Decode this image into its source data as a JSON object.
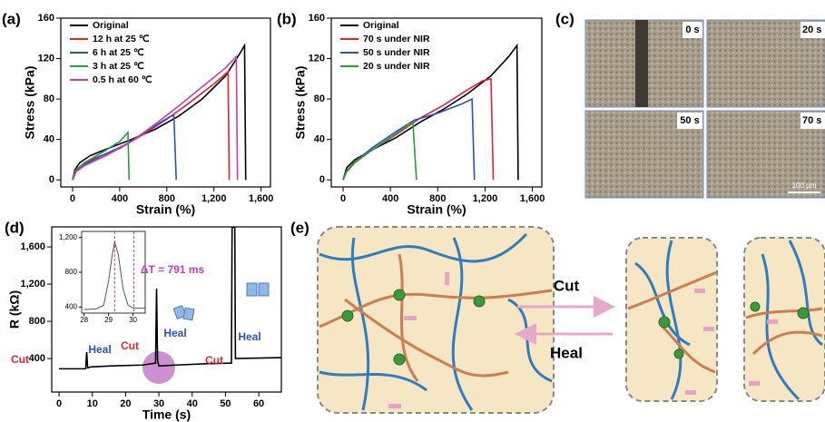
{
  "chart_data": [
    {
      "type": "line",
      "label": "(a)",
      "xlabel": "Strain (%)",
      "ylabel": "Stress (kPa)",
      "xlim": [
        -100,
        1680
      ],
      "ylim": [
        -7,
        160
      ],
      "xticks": [
        0,
        400,
        800,
        {
          "value": 1200,
          "label": "1,200"
        },
        {
          "value": 1600,
          "label": "1,600"
        }
      ],
      "yticks": [
        0,
        40,
        80,
        120,
        160
      ],
      "legend": "upper left",
      "series": [
        {
          "name": "Original",
          "color": "#000000",
          "x": [
            0,
            20,
            60,
            150,
            300,
            500,
            700,
            900,
            1100,
            1300,
            1420,
            1460,
            1470
          ],
          "values": [
            0,
            10,
            17,
            24,
            31,
            40,
            50,
            63,
            80,
            103,
            125,
            133,
            0
          ]
        },
        {
          "name": "12 h at 25 ℃",
          "color": "#e8202a",
          "x": [
            0,
            20,
            80,
            200,
            400,
            600,
            800,
            1000,
            1200,
            1290,
            1320,
            1330
          ],
          "values": [
            0,
            8,
            15,
            22,
            31,
            45,
            60,
            77,
            95,
            104,
            107,
            0
          ]
        },
        {
          "name": "6 h at 25 ℃",
          "color": "#2a4fc8",
          "x": [
            0,
            30,
            100,
            250,
            450,
            650,
            820,
            860,
            880
          ],
          "values": [
            0,
            8,
            15,
            24,
            35,
            50,
            62,
            64,
            0
          ]
        },
        {
          "name": "3 h at 25 ℃",
          "color": "#1fa23a",
          "x": [
            0,
            30,
            100,
            250,
            400,
            470,
            480
          ],
          "values": [
            0,
            10,
            17,
            27,
            38,
            47,
            0
          ]
        },
        {
          "name": "0.5 h at 60 ℃",
          "color": "#c43cc4",
          "x": [
            0,
            30,
            100,
            300,
            500,
            700,
            900,
            1100,
            1300,
            1390,
            1400
          ],
          "values": [
            0,
            8,
            14,
            25,
            38,
            55,
            73,
            92,
            111,
            122,
            0
          ]
        }
      ]
    },
    {
      "type": "line",
      "label": "(b)",
      "xlabel": "Strain (%)",
      "ylabel": "Stress (kPa)",
      "xlim": [
        -100,
        1680
      ],
      "ylim": [
        -7,
        160
      ],
      "xticks": [
        0,
        400,
        800,
        {
          "value": 1200,
          "label": "1,200"
        },
        {
          "value": 1600,
          "label": "1,600"
        }
      ],
      "yticks": [
        0,
        40,
        80,
        120,
        160
      ],
      "legend": "upper left",
      "series": [
        {
          "name": "Original",
          "color": "#000000",
          "x": [
            0,
            30,
            100,
            250,
            450,
            650,
            850,
            1050,
            1250,
            1400,
            1470,
            1480
          ],
          "values": [
            0,
            12,
            20,
            30,
            42,
            57,
            70,
            85,
            103,
            122,
            133,
            0
          ]
        },
        {
          "name": "70 s under NIR",
          "color": "#e8202a",
          "x": [
            0,
            30,
            100,
            250,
            450,
            650,
            850,
            1050,
            1180,
            1250,
            1270
          ],
          "values": [
            0,
            8,
            17,
            30,
            45,
            61,
            74,
            89,
            98,
            100,
            0
          ]
        },
        {
          "name": "50 s under NIR",
          "color": "#2a4fc8",
          "x": [
            0,
            30,
            100,
            250,
            450,
            600,
            800,
            1000,
            1090,
            1110
          ],
          "values": [
            0,
            9,
            18,
            32,
            48,
            59,
            66,
            75,
            80,
            0
          ]
        },
        {
          "name": "20 s under NIR",
          "color": "#1fa23a",
          "x": [
            0,
            30,
            100,
            250,
            450,
            550,
            590,
            620
          ],
          "values": [
            0,
            9,
            18,
            30,
            46,
            55,
            57,
            0
          ]
        }
      ]
    },
    {
      "type": "line",
      "label": "(d)",
      "xlabel": "Time (s)",
      "ylabel": "R (kΩ)",
      "xlim": [
        -2.2,
        66.8
      ],
      "ylim": [
        40,
        1815
      ],
      "xticks": [
        0,
        10,
        20,
        30,
        40,
        50,
        60
      ],
      "yticks": [
        400,
        800,
        {
          "value": 1200,
          "label": "1,200"
        },
        {
          "value": 1600,
          "label": "1,600"
        }
      ],
      "series": [
        {
          "color": "#000000",
          "x": [
            0,
            8,
            8.3,
            8.6,
            9.5,
            15,
            25,
            29,
            29.3,
            29.6,
            30,
            35,
            45,
            51,
            51.8,
            52,
            52.8,
            53,
            60,
            67
          ],
          "values": [
            290,
            290,
            470,
            300,
            310,
            320,
            330,
            350,
            1150,
            380,
            320,
            330,
            345,
            350,
            350,
            1810,
            1810,
            400,
            405,
            410
          ]
        }
      ],
      "annotations": [
        {
          "text": "Cut",
          "color": "#e8202a"
        },
        {
          "text": "Heal",
          "color": "#2a4fc8"
        },
        {
          "text": "Cut",
          "color": "#e8202a"
        },
        {
          "text": "Heal",
          "color": "#2a4fc8"
        },
        {
          "text": "Cut",
          "color": "#e8202a"
        },
        {
          "text": "Heal",
          "color": "#2a4fc8"
        }
      ]
    },
    {
      "type": "line",
      "xlim": [
        27.9,
        30.5
      ],
      "ylim": [
        330,
        1270
      ],
      "xticks": [
        28,
        29,
        30
      ],
      "yticks": [
        400,
        800,
        {
          "value": 1200,
          "label": "1,200"
        }
      ],
      "series": [
        {
          "color": "#555555",
          "x": [
            28,
            28.5,
            28.8,
            29,
            29.15,
            29.25,
            29.4,
            29.6,
            29.8,
            30,
            30.5
          ],
          "values": [
            370,
            380,
            420,
            700,
            1000,
            1150,
            1000,
            600,
            420,
            390,
            385
          ]
        }
      ],
      "markers": [
        29.25,
        30.04
      ],
      "marker_color": "#c43cc4",
      "annotations": [
        {
          "text": "ΔT = 791 ms",
          "color": "#c43cc4"
        }
      ]
    }
  ],
  "panel_c": {
    "label": "(c)",
    "frames": [
      "0 s",
      "20 s",
      "50 s",
      "70 s"
    ],
    "scale": "100 μm"
  },
  "panel_e": {
    "label": "(e)",
    "forward": "Cut",
    "backward": "Heal"
  }
}
